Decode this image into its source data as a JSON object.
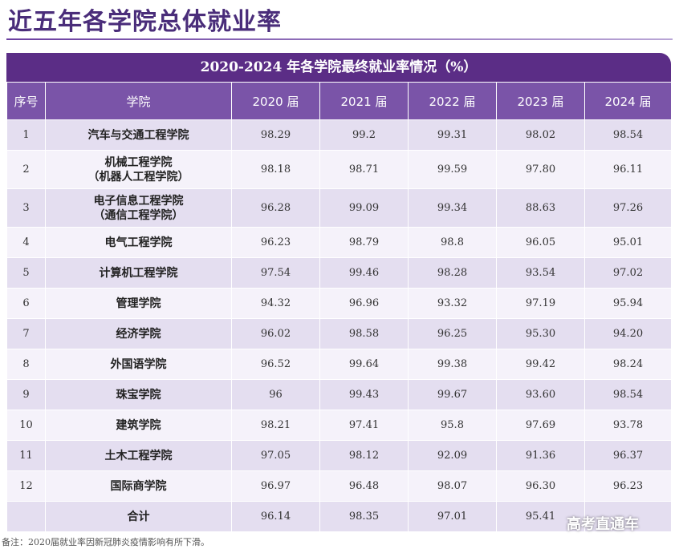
{
  "page_title": "近五年各学院总体就业率",
  "table_caption": "2020-2024 年各学院最终就业率情况（%）",
  "headers": [
    "序号",
    "学院",
    "2020 届",
    "2021 届",
    "2022 届",
    "2023 届",
    "2024 届"
  ],
  "rows": [
    {
      "index": "1",
      "college": "汽车与交通工程学院",
      "college_sub": "",
      "v2020": "98.29",
      "v2021": "99.2",
      "v2022": "99.31",
      "v2023": "98.02",
      "v2024": "98.54"
    },
    {
      "index": "2",
      "college": "机械工程学院",
      "college_sub": "（机器人工程学院）",
      "v2020": "98.18",
      "v2021": "98.71",
      "v2022": "99.59",
      "v2023": "97.80",
      "v2024": "96.11"
    },
    {
      "index": "3",
      "college": "电子信息工程学院",
      "college_sub": "（通信工程学院）",
      "v2020": "96.28",
      "v2021": "99.09",
      "v2022": "99.34",
      "v2023": "88.63",
      "v2024": "97.26"
    },
    {
      "index": "4",
      "college": "电气工程学院",
      "college_sub": "",
      "v2020": "96.23",
      "v2021": "98.79",
      "v2022": "98.8",
      "v2023": "96.05",
      "v2024": "95.01"
    },
    {
      "index": "5",
      "college": "计算机工程学院",
      "college_sub": "",
      "v2020": "97.54",
      "v2021": "99.46",
      "v2022": "98.28",
      "v2023": "93.54",
      "v2024": "97.02"
    },
    {
      "index": "6",
      "college": "管理学院",
      "college_sub": "",
      "v2020": "94.32",
      "v2021": "96.96",
      "v2022": "93.32",
      "v2023": "97.19",
      "v2024": "95.94"
    },
    {
      "index": "7",
      "college": "经济学院",
      "college_sub": "",
      "v2020": "96.02",
      "v2021": "98.58",
      "v2022": "96.25",
      "v2023": "95.30",
      "v2024": "94.20"
    },
    {
      "index": "8",
      "college": "外国语学院",
      "college_sub": "",
      "v2020": "96.52",
      "v2021": "99.64",
      "v2022": "99.38",
      "v2023": "99.42",
      "v2024": "98.24"
    },
    {
      "index": "9",
      "college": "珠宝学院",
      "college_sub": "",
      "v2020": "96",
      "v2021": "99.43",
      "v2022": "99.67",
      "v2023": "93.60",
      "v2024": "98.54"
    },
    {
      "index": "10",
      "college": "建筑学院",
      "college_sub": "",
      "v2020": "98.21",
      "v2021": "97.41",
      "v2022": "95.8",
      "v2023": "97.69",
      "v2024": "93.78"
    },
    {
      "index": "11",
      "college": "土木工程学院",
      "college_sub": "",
      "v2020": "97.05",
      "v2021": "98.12",
      "v2022": "92.09",
      "v2023": "91.36",
      "v2024": "96.37"
    },
    {
      "index": "12",
      "college": "国际商学院",
      "college_sub": "",
      "v2020": "96.97",
      "v2021": "96.48",
      "v2022": "98.07",
      "v2023": "96.30",
      "v2024": "96.23"
    }
  ],
  "total": {
    "index": "",
    "college": "合计",
    "v2020": "96.14",
    "v2021": "98.35",
    "v2022": "97.01",
    "v2023": "95.41",
    "v2024": ""
  },
  "note": "备注：2020届就业率因新冠肺炎疫情影响有所下滑。",
  "watermark": "高考直通车",
  "colors": {
    "title": "#4a2d7a",
    "caption_bg": "#5b2d86",
    "header_bg": "#7a54a8",
    "row_odd": "#e4def0",
    "row_even": "#f5f2fa"
  }
}
